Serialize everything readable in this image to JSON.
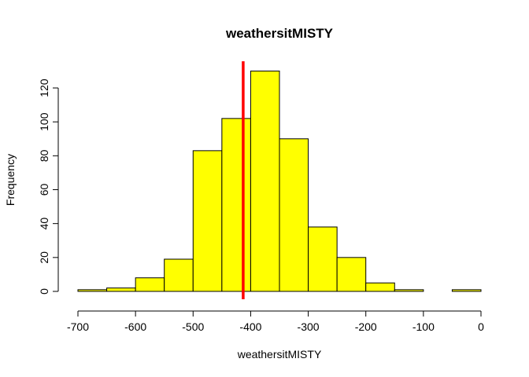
{
  "chart_data": {
    "type": "bar",
    "title": "weathersitMISTY",
    "xlabel": "weathersitMISTY",
    "ylabel": "Frequency",
    "bin_edges": [
      -700,
      -650,
      -600,
      -550,
      -500,
      -450,
      -400,
      -350,
      -300,
      -250,
      -200,
      -150,
      -100,
      -50,
      0
    ],
    "counts": [
      1,
      2,
      8,
      19,
      83,
      102,
      130,
      90,
      38,
      20,
      5,
      1,
      0,
      1
    ],
    "xlim": [
      -700,
      0
    ],
    "ylim": [
      0,
      130
    ],
    "x_ticks": [
      -700,
      -600,
      -500,
      -400,
      -300,
      -200,
      -100,
      0
    ],
    "y_ticks": [
      0,
      20,
      40,
      60,
      80,
      100,
      120
    ],
    "reference_line": {
      "x": -413,
      "color": "#ff0000"
    },
    "bar_color": "#ffff00",
    "grid": false,
    "legend": "none"
  }
}
